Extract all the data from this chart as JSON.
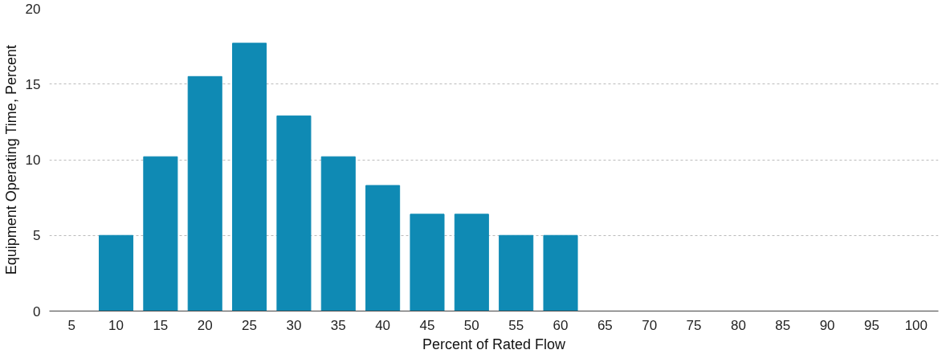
{
  "chart_data": {
    "type": "bar",
    "xlabel": "Percent of Rated Flow",
    "ylabel": "Equipment Operating Time, Percent",
    "categories": [
      "5",
      "10",
      "15",
      "20",
      "25",
      "30",
      "35",
      "40",
      "45",
      "50",
      "55",
      "60",
      "65",
      "70",
      "75",
      "80",
      "85",
      "90",
      "95",
      "100"
    ],
    "values": [
      null,
      5,
      10.2,
      15.5,
      17.7,
      12.9,
      10.2,
      8.3,
      6.4,
      6.4,
      5,
      5,
      null,
      null,
      null,
      null,
      null,
      null,
      null,
      null
    ],
    "color": "#0f8ab4",
    "ylim": [
      0,
      20
    ],
    "yticks": [
      0,
      5,
      10,
      15,
      20
    ],
    "grid": "y"
  }
}
